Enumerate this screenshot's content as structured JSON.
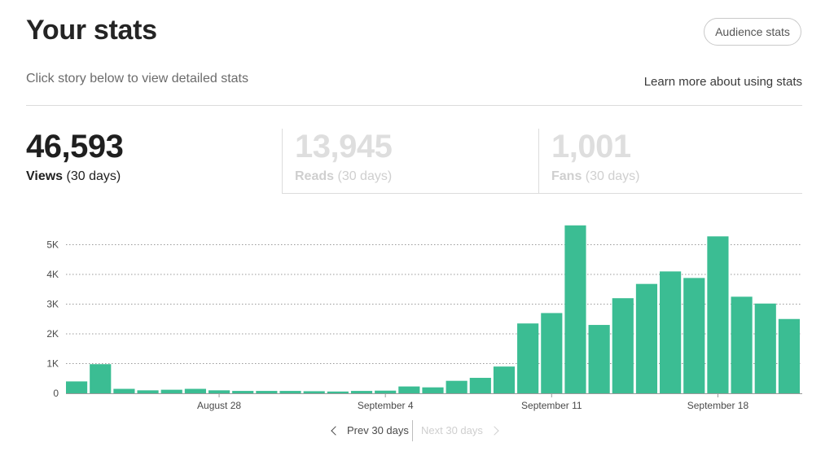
{
  "header": {
    "title": "Your stats",
    "audience_button": "Audience stats",
    "subtitle": "Click story below to view detailed stats",
    "learn_more": "Learn more about using stats"
  },
  "stats": {
    "views": {
      "value": "46,593",
      "name": "Views",
      "period": "(30 days)"
    },
    "reads": {
      "value": "13,945",
      "name": "Reads",
      "period": "(30 days)"
    },
    "fans": {
      "value": "1,001",
      "name": "Fans",
      "period": "(30 days)"
    }
  },
  "pager": {
    "prev": "Prev 30 days",
    "next": "Next 30 days"
  },
  "colors": {
    "bar": "#3bbd93",
    "grid": "#9a9a9a"
  },
  "chart_data": {
    "type": "bar",
    "x_start_date": "2023-08-21",
    "values": [
      400,
      980,
      150,
      100,
      120,
      150,
      100,
      80,
      80,
      80,
      70,
      60,
      80,
      90,
      230,
      200,
      420,
      520,
      900,
      2350,
      2700,
      5650,
      2300,
      3200,
      3680,
      4100,
      3880,
      5280,
      3250,
      3020,
      2500
    ],
    "ylim": [
      0,
      6000
    ],
    "y_ticks": [
      {
        "value": 0,
        "label": "0"
      },
      {
        "value": 1000,
        "label": "1K"
      },
      {
        "value": 2000,
        "label": "2K"
      },
      {
        "value": 3000,
        "label": "3K"
      },
      {
        "value": 4000,
        "label": "4K"
      },
      {
        "value": 5000,
        "label": "5K"
      }
    ],
    "x_ticks": [
      {
        "index": 6,
        "label": "August 28"
      },
      {
        "index": 13,
        "label": "September 4"
      },
      {
        "index": 20,
        "label": "September 11"
      },
      {
        "index": 27,
        "label": "September 18"
      }
    ],
    "grid": "dotted-horizontal",
    "legend": "none"
  }
}
